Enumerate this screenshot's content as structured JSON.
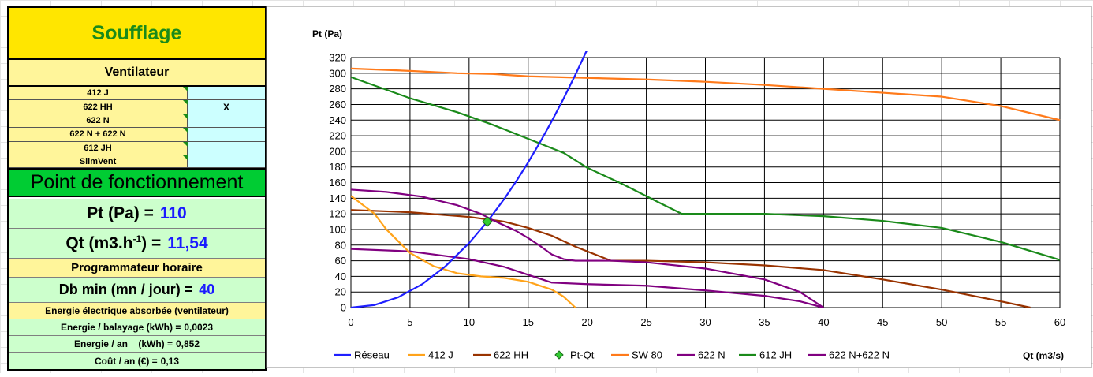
{
  "panel": {
    "title": "Soufflage",
    "ventilateur_label": "Ventilateur",
    "fans": [
      {
        "name": "412 J",
        "selected": ""
      },
      {
        "name": "622 HH",
        "selected": "X"
      },
      {
        "name": "622 N",
        "selected": ""
      },
      {
        "name": "622 N + 622 N",
        "selected": ""
      },
      {
        "name": "612 JH",
        "selected": ""
      },
      {
        "name": "SlimVent",
        "selected": ""
      }
    ],
    "point_label": "Point de fonctionnement",
    "pt_label": "Pt (Pa) =",
    "pt_value": "110",
    "qt_label_pre": "Qt (m3.h",
    "qt_label_sup": "-1",
    "qt_label_post": ") =",
    "qt_value": "11,54",
    "prog_label": "Programmateur horaire",
    "db_label": "Db min (mn / jour) =",
    "db_value": "40",
    "energy_label": "Energie électrique absorbée (ventilateur)",
    "energie_balayage_label": "Energie / balayage (kWh) =",
    "energie_balayage_value": "0,0023",
    "energie_an_label": "Energie / an    (kWh) =",
    "energie_an_value": "0,852",
    "cout_label": "Coût / an (€) =",
    "cout_value": "0,13"
  },
  "chart_data": {
    "type": "line",
    "ylabel": "Pt (Pa)",
    "xlabel": "Qt (m3/s)",
    "xlim": [
      0,
      60
    ],
    "ylim": [
      0,
      320
    ],
    "xticks": [
      0,
      5,
      10,
      15,
      20,
      25,
      30,
      35,
      40,
      45,
      50,
      55,
      60
    ],
    "yticks": [
      0,
      20,
      40,
      60,
      80,
      100,
      120,
      140,
      160,
      180,
      200,
      220,
      240,
      260,
      280,
      300,
      320
    ],
    "grid": true,
    "legend_position": "bottom",
    "series": [
      {
        "name": "Réseau",
        "color": "#1f1fff",
        "x": [
          0,
          2,
          4,
          6,
          8,
          10,
          11.54,
          13,
          14,
          15,
          16,
          17,
          18,
          19,
          20
        ],
        "y": [
          0,
          3.3,
          13.2,
          29.7,
          52.9,
          82.6,
          110,
          139.6,
          161.9,
          185.9,
          211.5,
          238.7,
          267.6,
          298.2,
          330.4
        ]
      },
      {
        "name": "412 J",
        "color": "#ffa31a",
        "x": [
          0,
          2,
          3,
          4,
          5,
          7,
          9,
          11,
          13,
          15,
          17,
          18,
          19
        ],
        "y": [
          143,
          120,
          100,
          85,
          70,
          53,
          44,
          40,
          38,
          33,
          23,
          14,
          0
        ]
      },
      {
        "name": "622 HH",
        "color": "#993300",
        "x": [
          0,
          5,
          10,
          13,
          15,
          17,
          19,
          22,
          25,
          30,
          35,
          40,
          45,
          50,
          55,
          57.5
        ],
        "y": [
          125,
          122,
          116,
          110,
          102,
          92,
          78,
          60,
          60,
          58,
          54,
          48,
          36,
          23,
          8,
          0
        ]
      },
      {
        "name": "Pt-Qt",
        "color": "#33cc33",
        "marker": "diamond",
        "x": [
          11.54
        ],
        "y": [
          110
        ]
      },
      {
        "name": "SW 80",
        "color": "#ff7a1a",
        "x": [
          0,
          5,
          9,
          12,
          15,
          20,
          25,
          30,
          35,
          40,
          45,
          50,
          55,
          60
        ],
        "y": [
          306,
          303,
          300,
          299,
          296,
          294,
          292,
          289,
          285,
          280,
          275,
          270,
          258,
          240
        ]
      },
      {
        "name": "622 N",
        "color": "#800080",
        "x": [
          0,
          5,
          10,
          13,
          15,
          17,
          20,
          25,
          30,
          35,
          38,
          40
        ],
        "y": [
          75,
          72,
          62,
          52,
          42,
          32,
          30,
          28,
          22,
          15,
          8,
          0
        ]
      },
      {
        "name": "612 JH",
        "color": "#1a8a1a",
        "x": [
          0,
          5,
          9,
          12,
          15,
          18,
          20,
          23,
          26,
          28,
          30,
          35,
          40,
          45,
          50,
          55,
          60
        ],
        "y": [
          295,
          268,
          250,
          234,
          216,
          198,
          179,
          158,
          135,
          120,
          120,
          120,
          117,
          111,
          102,
          84,
          61
        ]
      },
      {
        "name": "622 N+622 N",
        "color": "#800080",
        "x": [
          0,
          3,
          6,
          9,
          11,
          12,
          14,
          15,
          16,
          17,
          18,
          19,
          22,
          25,
          30,
          35,
          38,
          40
        ],
        "y": [
          151,
          148,
          142,
          131,
          120,
          112,
          98,
          89,
          79,
          68,
          62,
          60,
          60,
          58,
          50,
          36,
          20,
          0
        ]
      }
    ]
  }
}
